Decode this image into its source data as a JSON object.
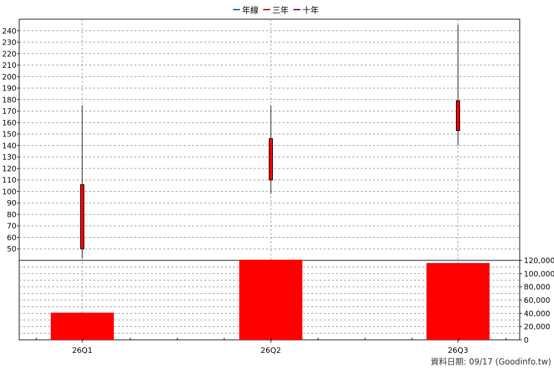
{
  "chart_data": [
    {
      "type": "candlestick",
      "categories": [
        "26Q1",
        "26Q2",
        "26Q3"
      ],
      "legend": [
        {
          "name": "年線",
          "color": "#1f5fbf"
        },
        {
          "name": "三年",
          "color": "#e00000"
        },
        {
          "name": "十年",
          "color": "#800080"
        }
      ],
      "ohlc": [
        {
          "open": 50,
          "high": 175,
          "low": 42,
          "close": 106
        },
        {
          "open": 110,
          "high": 175,
          "low": 98,
          "close": 146
        },
        {
          "open": 153,
          "high": 245,
          "low": 140,
          "close": 179
        }
      ],
      "candle_color": "#ff0000",
      "ylim": [
        40,
        250
      ],
      "yticks": [
        "50",
        "60",
        "70",
        "80",
        "90",
        "100",
        "110",
        "120",
        "130",
        "140",
        "150",
        "160",
        "170",
        "180",
        "190",
        "200",
        "210",
        "220",
        "230",
        "240"
      ]
    },
    {
      "type": "bar",
      "categories": [
        "26Q1",
        "26Q2",
        "26Q3"
      ],
      "values": [
        41000,
        121000,
        116000
      ],
      "bar_color": "#ff0000",
      "ylim": [
        0,
        120000
      ],
      "yticks": [
        "0",
        "20,000",
        "40,000",
        "60,000",
        "80,000",
        "100,000",
        "120,000"
      ]
    }
  ],
  "footer": "資料日期: 09/17  (Goodinfo.tw)"
}
